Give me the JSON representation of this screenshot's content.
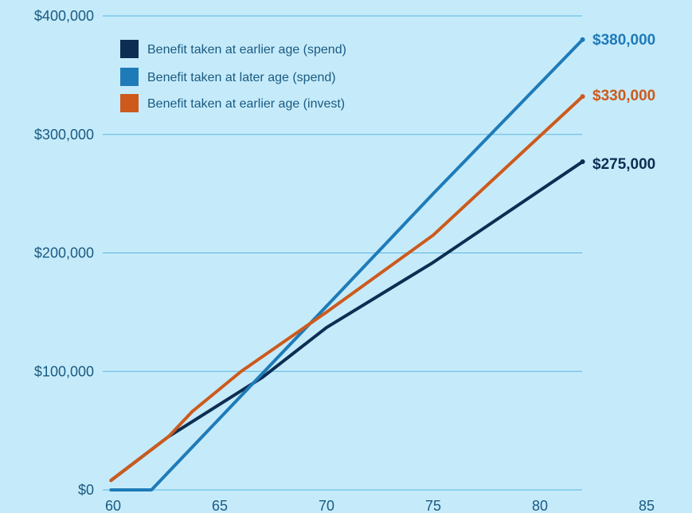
{
  "chart_data": {
    "type": "line",
    "title": "",
    "xlabel": "",
    "ylabel": "",
    "x_ticks": [
      "60",
      "65",
      "70",
      "75",
      "80",
      "85"
    ],
    "y_ticks": [
      "$0",
      "$100,000",
      "$200,000",
      "$300,000",
      "$400,000"
    ],
    "y_tick_values": [
      0,
      100000,
      200000,
      300000,
      400000
    ],
    "x_tick_values": [
      60,
      65,
      70,
      75,
      80,
      85
    ],
    "xlim": [
      60,
      85
    ],
    "ylim": [
      0,
      400000
    ],
    "grid": "horizontal",
    "legend_position": "top-left",
    "series": [
      {
        "name": "Benefit taken at earlier age (spend)",
        "color": "#0e2d52",
        "end_label": "$275,000",
        "x": [
          59.9,
          62.6,
          67,
          70,
          75,
          82
        ],
        "y": [
          8000,
          45000,
          95000,
          137000,
          192000,
          277000
        ]
      },
      {
        "name": "Benefit taken at later age (spend)",
        "color": "#1f7bb8",
        "end_label": "$380,000",
        "x": [
          59.9,
          61.8,
          70,
          75,
          82
        ],
        "y": [
          0,
          0,
          155000,
          250000,
          380000
        ]
      },
      {
        "name": "Benefit taken at earlier age (invest)",
        "color": "#cd5a1c",
        "end_label": "$330,000",
        "x": [
          59.9,
          62.6,
          63.7,
          66,
          70,
          75,
          82
        ],
        "y": [
          8000,
          45000,
          66000,
          100000,
          150000,
          215000,
          332000
        ]
      }
    ]
  }
}
